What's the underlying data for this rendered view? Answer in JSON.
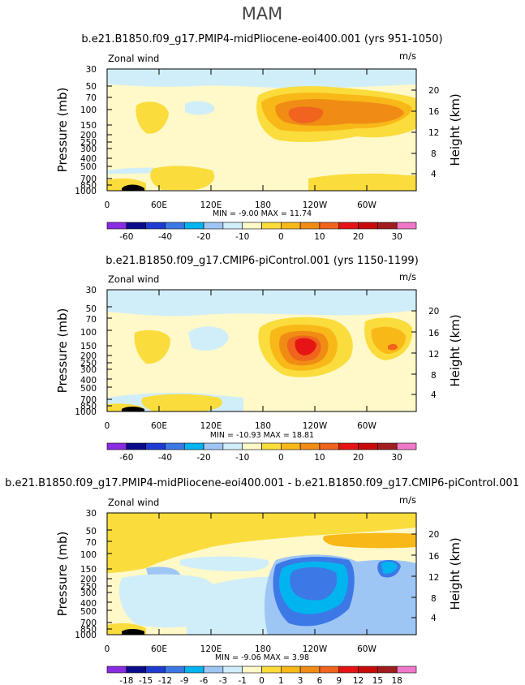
{
  "season": "MAM",
  "colors": {
    "purple": "#8a2be2",
    "navy": "#0a0a8c",
    "blue": "#1e3cd2",
    "mid_blue": "#3c78e6",
    "cyan": "#00b4f0",
    "light_blue": "#9ec6f5",
    "pale_blue": "#d0eefa",
    "pale_yellow": "#fff8c8",
    "yellow": "#fadc3c",
    "orange_light": "#f8b818",
    "orange": "#f08c14",
    "orange_red": "#f0641e",
    "red": "#e61414",
    "dark_red": "#c80a0a",
    "brown": "#a01e1e",
    "pink": "#f078c8"
  },
  "chart_data": [
    {
      "type": "heatmap",
      "title": "b.e21.B1850.f09_g17.PMIP4-midPliocene-eoi400.001 (yrs 951-1050)",
      "variable": "Zonal wind",
      "units": "m/s",
      "xlabel": "",
      "ylabel": "Pressure  (mb)",
      "y2label": "Height  (km)",
      "x_ticks": [
        "0",
        "60E",
        "120E",
        "180",
        "120W",
        "60W"
      ],
      "y_ticks": [
        "30",
        "50",
        "70",
        "100",
        "150",
        "200",
        "250",
        "300",
        "400",
        "500",
        "700",
        "850",
        "1000"
      ],
      "y2_ticks": [
        "20",
        "16",
        "12",
        "8",
        "4"
      ],
      "stats": {
        "min": -9.0,
        "max": 11.74
      },
      "stats_text": "MIN =   -9.00   MAX =   11.74",
      "colorbar_labels": [
        "-60",
        "-40",
        "-20",
        "-10",
        "0",
        "10",
        "20",
        "30"
      ],
      "colorbar_colors": [
        "#8a2be2",
        "#0a0a8c",
        "#1e3cd2",
        "#3c78e6",
        "#00b4f0",
        "#9ec6f5",
        "#d0eefa",
        "#fff8c8",
        "#fadc3c",
        "#f8b818",
        "#f08c14",
        "#f0641e",
        "#e61414",
        "#c80a0a",
        "#a01e1e",
        "#f078c8"
      ]
    },
    {
      "type": "heatmap",
      "title": "b.e21.B1850.f09_g17.CMIP6-piControl.001 (yrs 1150-1199)",
      "variable": "Zonal wind",
      "units": "m/s",
      "xlabel": "",
      "ylabel": "Pressure  (mb)",
      "y2label": "Height  (km)",
      "x_ticks": [
        "0",
        "60E",
        "120E",
        "180",
        "120W",
        "60W"
      ],
      "y_ticks": [
        "30",
        "50",
        "70",
        "100",
        "150",
        "200",
        "250",
        "300",
        "400",
        "500",
        "700",
        "850",
        "1000"
      ],
      "y2_ticks": [
        "20",
        "16",
        "12",
        "8",
        "4"
      ],
      "stats": {
        "min": -10.93,
        "max": 18.81
      },
      "stats_text": "MIN =  -10.93   MAX =   18.81",
      "colorbar_labels": [
        "-60",
        "-40",
        "-20",
        "-10",
        "0",
        "10",
        "20",
        "30"
      ],
      "colorbar_colors": [
        "#8a2be2",
        "#0a0a8c",
        "#1e3cd2",
        "#3c78e6",
        "#00b4f0",
        "#9ec6f5",
        "#d0eefa",
        "#fff8c8",
        "#fadc3c",
        "#f8b818",
        "#f08c14",
        "#f0641e",
        "#e61414",
        "#c80a0a",
        "#a01e1e",
        "#f078c8"
      ]
    },
    {
      "type": "heatmap",
      "title": "b.e21.B1850.f09_g17.PMIP4-midPliocene-eoi400.001 - b.e21.B1850.f09_g17.CMIP6-piControl.001",
      "variable": "Zonal wind",
      "units": "m/s",
      "xlabel": "",
      "ylabel": "Pressure  (mb)",
      "y2label": "Height  (km)",
      "x_ticks": [
        "0",
        "60E",
        "120E",
        "180",
        "120W",
        "60W"
      ],
      "y_ticks": [
        "30",
        "50",
        "70",
        "100",
        "150",
        "200",
        "250",
        "300",
        "400",
        "500",
        "700",
        "850",
        "1000"
      ],
      "y2_ticks": [
        "20",
        "16",
        "12",
        "8",
        "4"
      ],
      "stats": {
        "min": -9.06,
        "max": 3.98
      },
      "stats_text": "MIN =   -9.06   MAX =    3.98",
      "colorbar_labels": [
        "-18",
        "-15",
        "-12",
        "-9",
        "-6",
        "-3",
        "-1",
        "0",
        "1",
        "3",
        "6",
        "9",
        "12",
        "15",
        "18"
      ],
      "colorbar_colors": [
        "#8a2be2",
        "#0a0a8c",
        "#1e3cd2",
        "#3c78e6",
        "#00b4f0",
        "#9ec6f5",
        "#d0eefa",
        "#fff8c8",
        "#fadc3c",
        "#f8b818",
        "#f08c14",
        "#f0641e",
        "#e61414",
        "#c80a0a",
        "#a01e1e",
        "#f078c8"
      ]
    }
  ]
}
